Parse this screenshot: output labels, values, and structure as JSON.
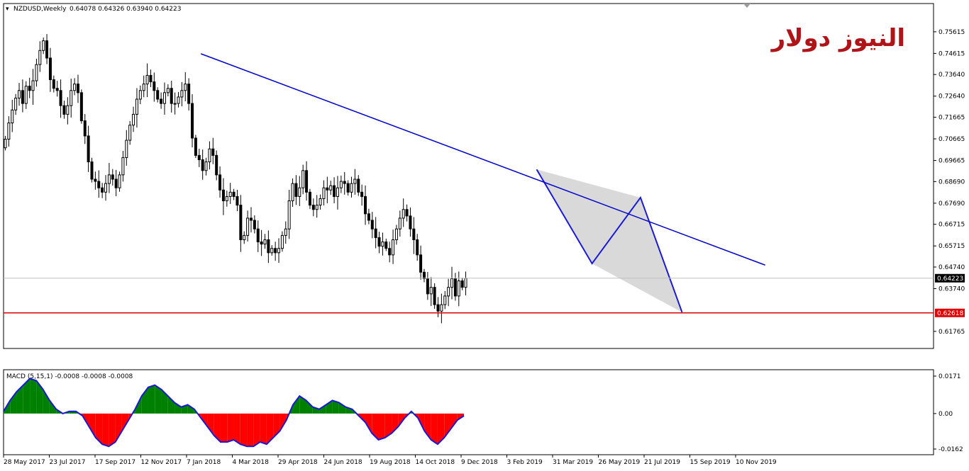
{
  "header": {
    "symbol_label": "NZDUSD,Weekly",
    "ohlc_label": "0.64078 0.64326 0.63940 0.64223"
  },
  "watermark": "النيوز دولار",
  "price_axis": {
    "ticks": [
      "0.75615",
      "0.74615",
      "0.73640",
      "0.72640",
      "0.71665",
      "0.70665",
      "0.69665",
      "0.68690",
      "0.67690",
      "0.66715",
      "0.65715",
      "0.64740",
      "0.63740",
      "0.61765"
    ],
    "current_price_label": "0.64223",
    "support_label": "0.62618"
  },
  "macd": {
    "label": "MACD (5,15,1) -0.0008 -0.0008 -0.0008",
    "axis_ticks": [
      "0.0171",
      "0.00",
      "-0.0162"
    ]
  },
  "time_axis": [
    "28 May 2017",
    "23 Jul 2017",
    "17 Sep 2017",
    "12 Nov 2017",
    "7 Jan 2018",
    "4 Mar 2018",
    "29 Apr 2018",
    "24 Jun 2018",
    "19 Aug 2018",
    "14 Oct 2018",
    "9 Dec 2018",
    "3 Feb 2019",
    "31 Mar 2019",
    "26 May 2019",
    "21 Jul 2019",
    "15 Sep 2019",
    "10 Nov 2019"
  ],
  "colors": {
    "bull_candle": "#ffffff",
    "bear_candle": "#000000",
    "trendline": "#0000cc",
    "support_line": "#e00000",
    "pattern_fill": "#d9d9d9",
    "pattern_line": "#1a1ad6",
    "macd_positive": "#008000",
    "macd_negative": "#ff0000",
    "macd_outline": "#1a1ad6",
    "current_price_line": "#c0c0c0"
  },
  "chart_data": {
    "type": "candlestick",
    "timeframe": "Weekly",
    "symbol": "NZDUSD",
    "close_series": [
      0.7065,
      0.714,
      0.72,
      0.7255,
      0.729,
      0.723,
      0.731,
      0.729,
      0.7335,
      0.741,
      0.7475,
      0.752,
      0.744,
      0.734,
      0.73,
      0.729,
      0.722,
      0.718,
      0.722,
      0.729,
      0.732,
      0.728,
      0.715,
      0.708,
      0.696,
      0.688,
      0.687,
      0.684,
      0.682,
      0.686,
      0.69,
      0.688,
      0.684,
      0.69,
      0.698,
      0.706,
      0.713,
      0.718,
      0.725,
      0.729,
      0.732,
      0.736,
      0.733,
      0.729,
      0.725,
      0.723,
      0.728,
      0.73,
      0.723,
      0.723,
      0.726,
      0.729,
      0.732,
      0.723,
      0.707,
      0.699,
      0.697,
      0.692,
      0.696,
      0.702,
      0.699,
      0.69,
      0.683,
      0.678,
      0.68,
      0.682,
      0.68,
      0.676,
      0.66,
      0.662,
      0.67,
      0.669,
      0.665,
      0.659,
      0.658,
      0.66,
      0.654,
      0.656,
      0.654,
      0.656,
      0.662,
      0.665,
      0.678,
      0.686,
      0.68,
      0.684,
      0.692,
      0.682,
      0.676,
      0.674,
      0.676,
      0.679,
      0.684,
      0.683,
      0.685,
      0.68,
      0.684,
      0.687,
      0.686,
      0.682,
      0.686,
      0.688,
      0.682,
      0.68,
      0.672,
      0.669,
      0.665,
      0.661,
      0.657,
      0.659,
      0.656,
      0.653,
      0.66,
      0.665,
      0.67,
      0.674,
      0.671,
      0.665,
      0.66,
      0.653,
      0.645,
      0.642,
      0.635,
      0.638,
      0.63,
      0.627,
      0.63,
      0.634,
      0.638,
      0.642,
      0.634,
      0.641,
      0.638,
      0.6422
    ],
    "price_range": [
      0.614,
      0.762
    ],
    "trendline": {
      "from": {
        "week": 57,
        "price": 0.746
      },
      "to": {
        "week": 220,
        "price": 0.6483
      }
    },
    "support_level": 0.62618,
    "current_price": 0.64223,
    "pattern_points": [
      {
        "week": 154,
        "price": 0.6925
      },
      {
        "week": 170,
        "price": 0.649
      },
      {
        "week": 184,
        "price": 0.6795
      },
      {
        "week": 196,
        "price": 0.6265
      }
    ],
    "macd_range": [
      -0.0162,
      0.0171
    ],
    "macd_values": [
      0.001,
      0.006,
      0.01,
      0.013,
      0.016,
      0.015,
      0.011,
      0.006,
      0.002,
      0.0,
      0.001,
      0.001,
      -0.001,
      -0.006,
      -0.011,
      -0.014,
      -0.015,
      -0.013,
      -0.008,
      -0.003,
      0.002,
      0.008,
      0.012,
      0.013,
      0.011,
      0.008,
      0.005,
      0.003,
      0.004,
      0.002,
      -0.002,
      -0.006,
      -0.01,
      -0.013,
      -0.013,
      -0.012,
      -0.014,
      -0.015,
      -0.015,
      -0.013,
      -0.014,
      -0.011,
      -0.008,
      -0.003,
      0.004,
      0.008,
      0.006,
      0.003,
      0.002,
      0.004,
      0.006,
      0.005,
      0.003,
      0.002,
      -0.001,
      -0.004,
      -0.009,
      -0.012,
      -0.011,
      -0.009,
      -0.006,
      -0.002,
      0.001,
      -0.002,
      -0.008,
      -0.012,
      -0.014,
      -0.011,
      -0.007,
      -0.003,
      -0.001
    ]
  }
}
